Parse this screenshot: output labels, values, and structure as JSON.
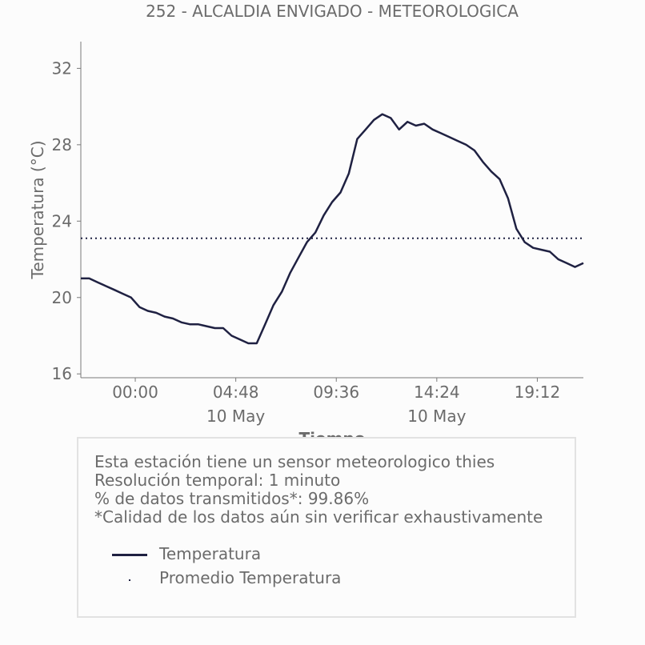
{
  "chart_data": {
    "type": "line",
    "title": "252 - ALCALDIA ENVIGADO - METEOROLOGICA",
    "xlabel": "Tiempo",
    "ylabel": "Temperatura (°C)",
    "x_unit": "hours since 00:00 10 May",
    "xlim": [
      -2.6,
      21.4
    ],
    "ylim": [
      15.8,
      33.4
    ],
    "y_ticks": [
      16,
      20,
      24,
      28,
      32
    ],
    "x_ticks": [
      {
        "x": 0,
        "label": "00:00",
        "sublabel": ""
      },
      {
        "x": 4.8,
        "label": "04:48",
        "sublabel": "10 May"
      },
      {
        "x": 9.6,
        "label": "09:36",
        "sublabel": ""
      },
      {
        "x": 14.4,
        "label": "14:24",
        "sublabel": "10 May"
      },
      {
        "x": 19.2,
        "label": "19:12",
        "sublabel": ""
      }
    ],
    "series": [
      {
        "name": "Temperatura",
        "color": "#1f2142",
        "style": "solid",
        "x": [
          -2.6,
          -2.2,
          -1.8,
          -1.4,
          -1.0,
          -0.6,
          -0.2,
          0.2,
          0.6,
          1.0,
          1.4,
          1.8,
          2.2,
          2.6,
          3.0,
          3.4,
          3.8,
          4.2,
          4.6,
          5.0,
          5.4,
          5.8,
          6.2,
          6.6,
          7.0,
          7.4,
          7.8,
          8.2,
          8.6,
          9.0,
          9.4,
          9.8,
          10.2,
          10.6,
          11.0,
          11.4,
          11.8,
          12.2,
          12.6,
          13.0,
          13.4,
          13.8,
          14.2,
          14.6,
          15.0,
          15.4,
          15.8,
          16.2,
          16.6,
          17.0,
          17.4,
          17.8,
          18.2,
          18.6,
          19.0,
          19.4,
          19.8,
          20.2,
          20.6,
          21.0,
          21.4
        ],
        "values": [
          21.0,
          21.0,
          20.8,
          20.6,
          20.4,
          20.2,
          20.0,
          19.5,
          19.3,
          19.2,
          19.0,
          18.9,
          18.7,
          18.6,
          18.6,
          18.5,
          18.4,
          18.4,
          18.0,
          17.8,
          17.6,
          17.6,
          18.6,
          19.6,
          20.3,
          21.3,
          22.1,
          22.9,
          23.4,
          24.3,
          25.0,
          25.5,
          26.5,
          28.3,
          28.8,
          29.3,
          29.6,
          29.4,
          28.8,
          29.2,
          29.0,
          29.1,
          28.8,
          28.6,
          28.4,
          28.2,
          28.0,
          27.7,
          27.1,
          26.6,
          26.2,
          25.2,
          23.6,
          22.9,
          22.6,
          22.5,
          22.4,
          22.0,
          21.8,
          21.6,
          21.8
        ]
      },
      {
        "name": "Promedio Temperatura",
        "color": "#1f2142",
        "style": "dotted",
        "value": 23.1
      }
    ],
    "grid": false,
    "legend_placement": "bottom"
  },
  "info": {
    "lines": [
      "Esta estación tiene un sensor meteorologico thies",
      "Resolución temporal: 1 minuto",
      "% de datos transmitidos*: 99.86%",
      "*Calidad de los datos aún sin verificar exhaustivamente"
    ],
    "legend": [
      {
        "label": "Temperatura"
      },
      {
        "label": "Promedio Temperatura"
      }
    ]
  }
}
